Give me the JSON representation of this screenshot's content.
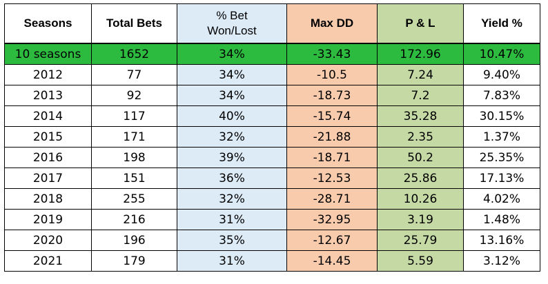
{
  "headers": {
    "seasons": "Seasons",
    "total_bets": "Total Bets",
    "bet_line1": "% Bet",
    "bet_line2": "Won/Lost",
    "max_dd": "Max DD",
    "pl": "P & L",
    "yield": "Yield %"
  },
  "colors": {
    "bet_column": "#ddebf7",
    "maxdd_column": "#f8cbad",
    "pl_column": "#c5d9a4",
    "summary_row": "#2dbb3f"
  },
  "rows": [
    {
      "season": "10 seasons",
      "total_bets": "1652",
      "pct": "34%",
      "max_dd": "-33.43",
      "pl": "172.96",
      "yield": "10.47%"
    },
    {
      "season": "2012",
      "total_bets": "77",
      "pct": "34%",
      "max_dd": "-10.5",
      "pl": "7.24",
      "yield": "9.40%"
    },
    {
      "season": "2013",
      "total_bets": "92",
      "pct": "34%",
      "max_dd": "-18.73",
      "pl": "7.2",
      "yield": "7.83%"
    },
    {
      "season": "2014",
      "total_bets": "117",
      "pct": "40%",
      "max_dd": "-15.74",
      "pl": "35.28",
      "yield": "30.15%"
    },
    {
      "season": "2015",
      "total_bets": "171",
      "pct": "32%",
      "max_dd": "-21.88",
      "pl": "2.35",
      "yield": "1.37%"
    },
    {
      "season": "2016",
      "total_bets": "198",
      "pct": "39%",
      "max_dd": "-18.71",
      "pl": "50.2",
      "yield": "25.35%"
    },
    {
      "season": "2017",
      "total_bets": "151",
      "pct": "36%",
      "max_dd": "-12.53",
      "pl": "25.86",
      "yield": "17.13%"
    },
    {
      "season": "2018",
      "total_bets": "255",
      "pct": "32%",
      "max_dd": "-28.71",
      "pl": "10.26",
      "yield": "4.02%"
    },
    {
      "season": "2019",
      "total_bets": "216",
      "pct": "31%",
      "max_dd": "-32.95",
      "pl": "3.19",
      "yield": "1.48%"
    },
    {
      "season": "2020",
      "total_bets": "196",
      "pct": "35%",
      "max_dd": "-12.67",
      "pl": "25.79",
      "yield": "13.16%"
    },
    {
      "season": "2021",
      "total_bets": "179",
      "pct": "31%",
      "max_dd": "-14.45",
      "pl": "5.59",
      "yield": "3.12%"
    }
  ]
}
